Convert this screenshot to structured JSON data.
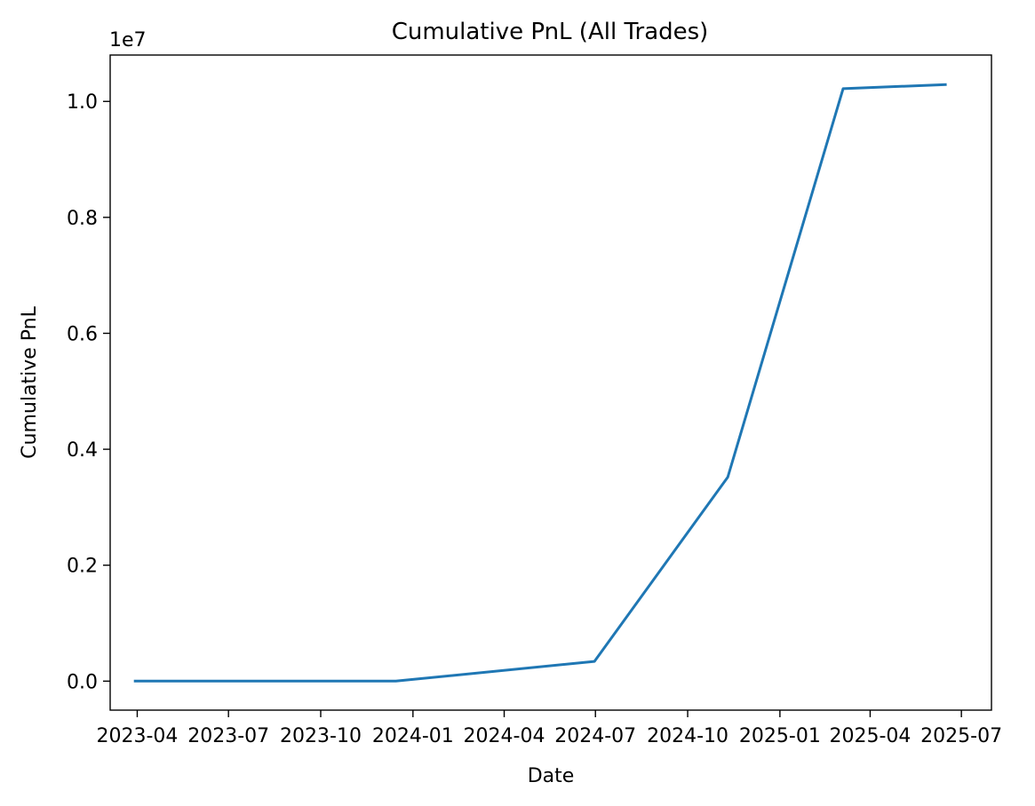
{
  "chart_data": {
    "type": "line",
    "title": "Cumulative PnL (All Trades)",
    "xlabel": "Date",
    "ylabel": "Cumulative PnL",
    "y_offset_label": "1e7",
    "grid": false,
    "legend": "none",
    "xlim": [
      "2023-03-05",
      "2025-07-31"
    ],
    "ylim": [
      -0.05,
      1.08
    ],
    "x_ticks": [
      {
        "date": "2023-04-01",
        "label": "2023-04"
      },
      {
        "date": "2023-07-01",
        "label": "2023-07"
      },
      {
        "date": "2023-10-01",
        "label": "2023-10"
      },
      {
        "date": "2024-01-01",
        "label": "2024-01"
      },
      {
        "date": "2024-04-01",
        "label": "2024-04"
      },
      {
        "date": "2024-07-01",
        "label": "2024-07"
      },
      {
        "date": "2024-10-01",
        "label": "2024-10"
      },
      {
        "date": "2025-01-01",
        "label": "2025-01"
      },
      {
        "date": "2025-04-01",
        "label": "2025-04"
      },
      {
        "date": "2025-07-01",
        "label": "2025-07"
      }
    ],
    "y_ticks": [
      {
        "value": 0.0,
        "label": "0.0"
      },
      {
        "value": 0.2,
        "label": "0.2"
      },
      {
        "value": 0.4,
        "label": "0.4"
      },
      {
        "value": 0.6,
        "label": "0.6"
      },
      {
        "value": 0.8,
        "label": "0.8"
      },
      {
        "value": 1.0,
        "label": "1.0"
      }
    ],
    "series": [
      {
        "color": "#1f77b4",
        "x": [
          "2023-03-30",
          "2023-12-15",
          "2024-06-30",
          "2024-11-10",
          "2025-03-05",
          "2025-06-15"
        ],
        "y": [
          0.0,
          0.0,
          0.034,
          0.352,
          1.022,
          1.029
        ]
      }
    ]
  }
}
